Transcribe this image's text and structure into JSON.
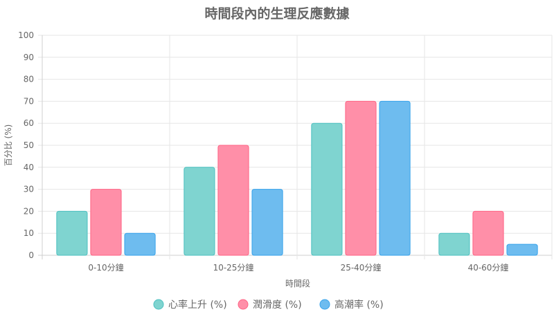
{
  "chart_data": {
    "type": "bar",
    "title": "時間段內的生理反應數據",
    "xlabel": "時間段",
    "ylabel": "百分比 (%)",
    "ylim": [
      0,
      100
    ],
    "yticks": [
      0,
      10,
      20,
      30,
      40,
      50,
      60,
      70,
      80,
      90,
      100
    ],
    "categories": [
      "0-10分鐘",
      "10-25分鐘",
      "25-40分鐘",
      "40-60分鐘"
    ],
    "series": [
      {
        "name": "心率上升 (%)",
        "values": [
          20,
          40,
          60,
          10
        ],
        "color": "#7fd4d0",
        "stroke": "#4bc0c0"
      },
      {
        "name": "潤滑度 (%)",
        "values": [
          30,
          50,
          70,
          20
        ],
        "color": "#ff8fa8",
        "stroke": "#ff6384"
      },
      {
        "name": "高潮率 (%)",
        "values": [
          10,
          30,
          70,
          5
        ],
        "color": "#6ebcef",
        "stroke": "#36a2eb"
      }
    ],
    "grid": true,
    "legend_position": "bottom"
  }
}
